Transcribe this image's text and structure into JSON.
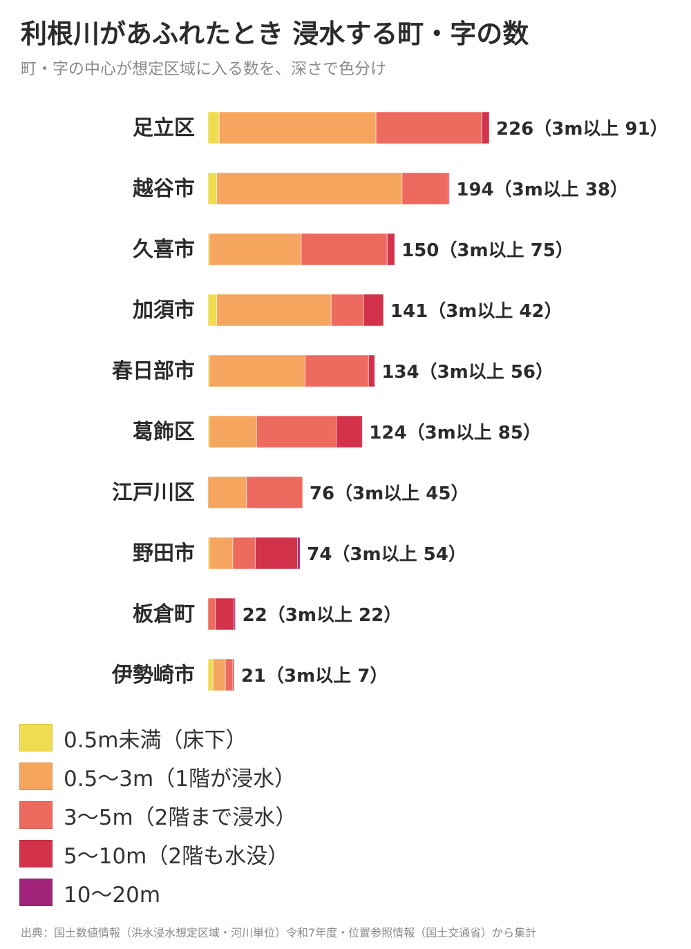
{
  "header": {
    "title": "利根川があふれたとき 浸水する町・字の数",
    "subtitle": "町・字の中心が想定区域に入る数を、深さで色分け"
  },
  "chart_data": {
    "type": "bar",
    "orientation": "horizontal",
    "stacked": true,
    "categories": [
      "足立区",
      "越谷市",
      "久喜市",
      "加須市",
      "春日部市",
      "葛飾区",
      "江戸川区",
      "野田市",
      "板倉町",
      "伊勢崎市"
    ],
    "totals": [
      226,
      194,
      150,
      141,
      134,
      124,
      76,
      74,
      22,
      21
    ],
    "over3m": [
      91,
      38,
      75,
      42,
      56,
      85,
      45,
      54,
      22,
      7
    ],
    "value_labels": [
      "226（3m以上 91）",
      "194（3m以上 38）",
      "150（3m以上 75）",
      "141（3m以上 42）",
      "134（3m以上 56）",
      "124（3m以上 85）",
      "76（3m以上 45）",
      "74（3m以上 54）",
      "22（3m以上 22）",
      "21（3m以上 7）"
    ],
    "series": [
      {
        "name": "0.5m未満（床下）",
        "color": "#f0dc50",
        "values": [
          9,
          7,
          1,
          7,
          1,
          1,
          0,
          1,
          0,
          4
        ]
      },
      {
        "name": "0.5〜3m（1階が浸水）",
        "color": "#f6a55e",
        "values": [
          126,
          149,
          74,
          92,
          77,
          38,
          31,
          19,
          0,
          10
        ]
      },
      {
        "name": "3〜5m（2階まで浸水）",
        "color": "#ed6a5e",
        "values": [
          85,
          37,
          69,
          26,
          51,
          64,
          45,
          18,
          6,
          6
        ]
      },
      {
        "name": "5〜10m（2階も水没）",
        "color": "#d2334a",
        "values": [
          6,
          1,
          6,
          16,
          5,
          21,
          0,
          34,
          15,
          1
        ]
      },
      {
        "name": "10〜20m",
        "color": "#a2237a",
        "values": [
          0,
          0,
          0,
          0,
          0,
          0,
          0,
          2,
          1,
          0
        ]
      }
    ],
    "xlim": [
      0,
      226
    ]
  },
  "source": "出典：国土数値情報（洪水浸水想定区域・河川単位）令和7年度・位置参照情報（国土交通省）から集計"
}
